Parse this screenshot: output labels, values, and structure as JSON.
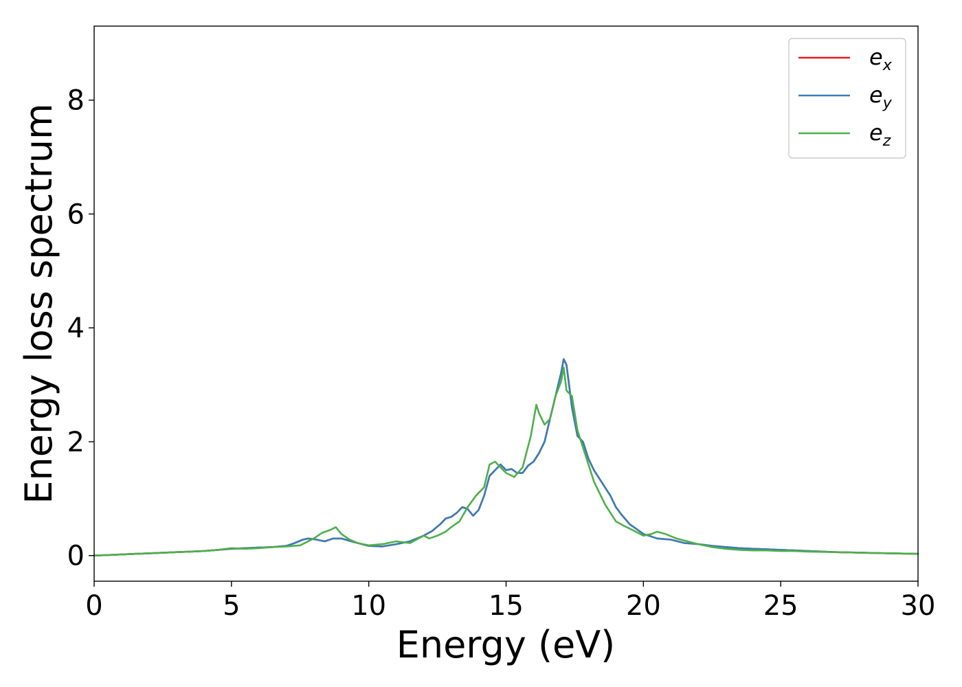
{
  "chart_data": {
    "type": "line",
    "title": "",
    "xlabel": "Energy (eV)",
    "ylabel": "Energy loss spectrum",
    "xlim": [
      0,
      30
    ],
    "ylim": [
      -0.45,
      9.3
    ],
    "xticks": [
      0,
      5,
      10,
      15,
      20,
      25,
      30
    ],
    "yticks": [
      0,
      2,
      4,
      6,
      8
    ],
    "xtick_labels": [
      "0",
      "5",
      "10",
      "15",
      "20",
      "25",
      "30"
    ],
    "ytick_labels": [
      "0",
      "2",
      "4",
      "6",
      "8"
    ],
    "grid": false,
    "legend_position": "top-right",
    "colors": {
      "ex": "#e41a1c",
      "ey": "#377eb8",
      "ez": "#4daf4a"
    },
    "series": [
      {
        "name": "ex",
        "label_base": "e",
        "label_sub": "x",
        "color": "#e41a1c",
        "x": [
          0,
          0.5,
          1,
          1.5,
          2,
          2.5,
          3,
          3.5,
          4,
          4.5,
          5,
          5.5,
          6,
          6.5,
          7,
          7.3,
          7.6,
          7.8,
          8.1,
          8.4,
          8.7,
          9,
          9.3,
          9.6,
          10,
          10.5,
          11,
          11.5,
          12,
          12.3,
          12.6,
          12.8,
          13,
          13.2,
          13.4,
          13.6,
          13.8,
          14,
          14.2,
          14.4,
          14.6,
          14.8,
          15,
          15.2,
          15.4,
          15.6,
          15.8,
          16,
          16.2,
          16.4,
          16.6,
          16.8,
          17,
          17.1,
          17.2,
          17.4,
          17.6,
          17.8,
          18,
          18.2,
          18.4,
          18.6,
          18.8,
          19,
          19.2,
          19.5,
          19.8,
          20,
          20.5,
          21,
          21.5,
          22,
          22.5,
          23,
          23.5,
          24,
          24.5,
          25,
          25.5,
          26,
          27,
          28,
          29,
          30
        ],
        "y": [
          0,
          0.01,
          0.02,
          0.03,
          0.04,
          0.05,
          0.06,
          0.07,
          0.08,
          0.1,
          0.12,
          0.13,
          0.14,
          0.15,
          0.17,
          0.22,
          0.28,
          0.3,
          0.28,
          0.25,
          0.3,
          0.3,
          0.26,
          0.22,
          0.17,
          0.16,
          0.2,
          0.25,
          0.35,
          0.43,
          0.55,
          0.65,
          0.68,
          0.75,
          0.85,
          0.82,
          0.7,
          0.8,
          1.05,
          1.4,
          1.5,
          1.6,
          1.5,
          1.52,
          1.45,
          1.45,
          1.58,
          1.65,
          1.8,
          2.0,
          2.4,
          2.8,
          3.2,
          3.45,
          3.35,
          2.6,
          2.1,
          2.0,
          1.7,
          1.5,
          1.35,
          1.2,
          1.05,
          0.85,
          0.72,
          0.55,
          0.45,
          0.38,
          0.3,
          0.28,
          0.22,
          0.2,
          0.17,
          0.15,
          0.13,
          0.12,
          0.11,
          0.1,
          0.09,
          0.08,
          0.06,
          0.05,
          0.04,
          0.03
        ]
      },
      {
        "name": "ey",
        "label_base": "e",
        "label_sub": "y",
        "color": "#377eb8",
        "x": [
          0,
          0.5,
          1,
          1.5,
          2,
          2.5,
          3,
          3.5,
          4,
          4.5,
          5,
          5.5,
          6,
          6.5,
          7,
          7.3,
          7.6,
          7.8,
          8.1,
          8.4,
          8.7,
          9,
          9.3,
          9.6,
          10,
          10.5,
          11,
          11.5,
          12,
          12.3,
          12.6,
          12.8,
          13,
          13.2,
          13.4,
          13.6,
          13.8,
          14,
          14.2,
          14.4,
          14.6,
          14.8,
          15,
          15.2,
          15.4,
          15.6,
          15.8,
          16,
          16.2,
          16.4,
          16.6,
          16.8,
          17,
          17.1,
          17.2,
          17.4,
          17.6,
          17.8,
          18,
          18.2,
          18.4,
          18.6,
          18.8,
          19,
          19.2,
          19.5,
          19.8,
          20,
          20.5,
          21,
          21.5,
          22,
          22.5,
          23,
          23.5,
          24,
          24.5,
          25,
          25.5,
          26,
          27,
          28,
          29,
          30
        ],
        "y": [
          0,
          0.01,
          0.02,
          0.03,
          0.04,
          0.05,
          0.06,
          0.07,
          0.08,
          0.1,
          0.12,
          0.13,
          0.14,
          0.15,
          0.17,
          0.22,
          0.28,
          0.3,
          0.28,
          0.25,
          0.3,
          0.3,
          0.26,
          0.22,
          0.17,
          0.16,
          0.2,
          0.25,
          0.35,
          0.43,
          0.55,
          0.65,
          0.68,
          0.75,
          0.85,
          0.82,
          0.7,
          0.8,
          1.05,
          1.4,
          1.5,
          1.6,
          1.5,
          1.52,
          1.45,
          1.45,
          1.58,
          1.65,
          1.8,
          2.0,
          2.4,
          2.8,
          3.2,
          3.45,
          3.35,
          2.6,
          2.1,
          2.0,
          1.7,
          1.5,
          1.35,
          1.2,
          1.05,
          0.85,
          0.72,
          0.55,
          0.45,
          0.38,
          0.3,
          0.28,
          0.22,
          0.2,
          0.17,
          0.15,
          0.13,
          0.12,
          0.11,
          0.1,
          0.09,
          0.08,
          0.06,
          0.05,
          0.04,
          0.03
        ]
      },
      {
        "name": "ez",
        "label_base": "e",
        "label_sub": "z",
        "color": "#4daf4a",
        "x": [
          0,
          0.5,
          1,
          1.5,
          2,
          2.5,
          3,
          3.5,
          4,
          4.5,
          5,
          5.5,
          6,
          6.5,
          7,
          7.5,
          8,
          8.3,
          8.6,
          8.8,
          9,
          9.3,
          9.6,
          10,
          10.5,
          11,
          11.5,
          12,
          12.2,
          12.5,
          12.8,
          13,
          13.3,
          13.6,
          13.9,
          14.2,
          14.4,
          14.6,
          14.8,
          15,
          15.3,
          15.6,
          15.9,
          16.1,
          16.2,
          16.4,
          16.6,
          16.8,
          17,
          17.1,
          17.2,
          17.4,
          17.6,
          17.8,
          18,
          18.2,
          18.4,
          18.6,
          18.8,
          19,
          19.3,
          19.6,
          20,
          20.3,
          20.5,
          20.8,
          21.2,
          21.6,
          22,
          22.5,
          23,
          23.5,
          24,
          24.5,
          25,
          25.5,
          26,
          27,
          28,
          29,
          30
        ],
        "y": [
          0,
          0.01,
          0.02,
          0.03,
          0.04,
          0.05,
          0.06,
          0.07,
          0.08,
          0.1,
          0.13,
          0.12,
          0.13,
          0.15,
          0.16,
          0.18,
          0.3,
          0.4,
          0.45,
          0.5,
          0.38,
          0.28,
          0.22,
          0.18,
          0.2,
          0.25,
          0.22,
          0.35,
          0.3,
          0.35,
          0.42,
          0.5,
          0.6,
          0.85,
          1.05,
          1.2,
          1.6,
          1.65,
          1.55,
          1.45,
          1.38,
          1.55,
          2.1,
          2.65,
          2.5,
          2.3,
          2.4,
          2.8,
          3.05,
          3.3,
          2.9,
          2.8,
          2.2,
          1.9,
          1.6,
          1.3,
          1.1,
          0.9,
          0.75,
          0.6,
          0.52,
          0.45,
          0.35,
          0.38,
          0.42,
          0.38,
          0.3,
          0.25,
          0.2,
          0.15,
          0.12,
          0.1,
          0.09,
          0.09,
          0.08,
          0.08,
          0.07,
          0.06,
          0.05,
          0.04,
          0.03
        ]
      }
    ]
  }
}
